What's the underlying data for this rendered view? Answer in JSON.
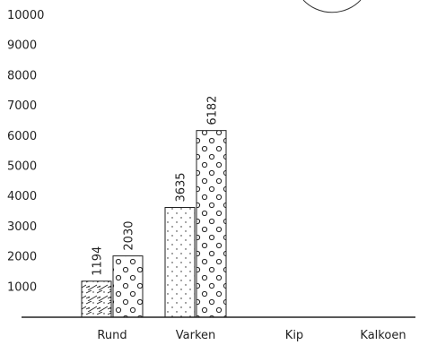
{
  "chart_data": {
    "type": "bar",
    "categories": [
      "Rund",
      "Varken",
      "Kip",
      "Kalkoen"
    ],
    "series": [
      {
        "values": [
          1194,
          3635,
          0,
          0
        ],
        "pattern": "hatch"
      },
      {
        "values": [
          2030,
          6182,
          0,
          0
        ],
        "pattern": "circles"
      }
    ],
    "data_labels": [
      [
        "1194",
        "3635",
        "",
        ""
      ],
      [
        "2030",
        "6182",
        "",
        ""
      ]
    ],
    "yticks": [
      1000,
      2000,
      3000,
      4000,
      5000,
      6000,
      7000,
      8000,
      9000,
      10000
    ],
    "ylim": [
      0,
      10000
    ],
    "title": "",
    "xlabel": "",
    "ylabel": "",
    "grid": false,
    "colors": {
      "bar_fill": "#ffffff",
      "stroke": "#222222",
      "text": "#222222"
    }
  }
}
